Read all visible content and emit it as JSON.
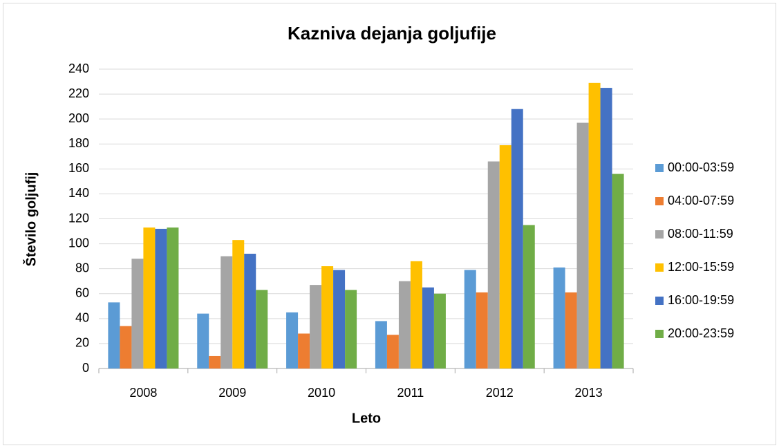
{
  "chart_data": {
    "type": "bar",
    "title": "Kazniva dejanja goljufije",
    "x_label": "Leto",
    "y_label": "Število goljufij",
    "categories": [
      "2008",
      "2009",
      "2010",
      "2011",
      "2012",
      "2013"
    ],
    "series": [
      {
        "name": "00:00-03:59",
        "color": "#5b9bd5",
        "values": [
          53,
          44,
          45,
          38,
          79,
          81
        ]
      },
      {
        "name": "04:00-07:59",
        "color": "#ed7d31",
        "values": [
          34,
          10,
          28,
          27,
          61,
          61
        ]
      },
      {
        "name": "08:00-11:59",
        "color": "#a5a5a5",
        "values": [
          88,
          90,
          67,
          70,
          166,
          197
        ]
      },
      {
        "name": "12:00-15:59",
        "color": "#ffc000",
        "values": [
          113,
          103,
          82,
          86,
          179,
          229
        ]
      },
      {
        "name": "16:00-19:59",
        "color": "#4472c4",
        "values": [
          112,
          92,
          79,
          65,
          208,
          225
        ]
      },
      {
        "name": "20:00-23:59",
        "color": "#70ad47",
        "values": [
          113,
          63,
          63,
          60,
          115,
          156
        ]
      }
    ],
    "ylim": [
      0,
      240
    ],
    "yticks": [
      0,
      20,
      40,
      60,
      80,
      100,
      120,
      140,
      160,
      180,
      200,
      220,
      240
    ],
    "grid": true,
    "legend": "right"
  }
}
